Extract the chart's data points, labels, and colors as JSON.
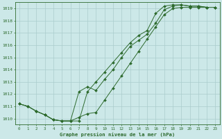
{
  "title": "Graphe pression niveau de la mer (hPa)",
  "bg_color": "#cce8e8",
  "grid_color": "#aacccc",
  "line_color": "#2d6a2d",
  "xlim": [
    -0.5,
    23.5
  ],
  "ylim": [
    1009.5,
    1019.5
  ],
  "yticks": [
    1010,
    1011,
    1012,
    1013,
    1014,
    1015,
    1016,
    1017,
    1018,
    1019
  ],
  "xticks": [
    0,
    1,
    2,
    3,
    4,
    5,
    6,
    7,
    8,
    9,
    10,
    11,
    12,
    13,
    14,
    15,
    16,
    17,
    18,
    19,
    20,
    21,
    22,
    23
  ],
  "series1_x": [
    0,
    1,
    2,
    3,
    4,
    5,
    6,
    7,
    8,
    9,
    10,
    11,
    12,
    13,
    14,
    15,
    16,
    17,
    18,
    19,
    20,
    21,
    22,
    23
  ],
  "series1_y": [
    1011.2,
    1011.0,
    1010.6,
    1010.3,
    1009.9,
    1009.8,
    1009.8,
    1010.1,
    1010.4,
    1010.5,
    1011.5,
    1012.5,
    1013.5,
    1014.5,
    1015.5,
    1016.5,
    1017.5,
    1018.5,
    1019.0,
    1019.1,
    1019.1,
    1019.1,
    1019.1,
    1019.1
  ],
  "series2_x": [
    0,
    1,
    2,
    3,
    4,
    5,
    6,
    7,
    8,
    9,
    10,
    11,
    12,
    13,
    14,
    15,
    16,
    17,
    18,
    19,
    20,
    21,
    22,
    23
  ],
  "series2_y": [
    1011.2,
    1011.0,
    1010.6,
    1010.3,
    1009.9,
    1009.8,
    1009.8,
    1012.2,
    1012.6,
    1012.3,
    1013.2,
    1014.0,
    1015.0,
    1015.9,
    1016.4,
    1016.9,
    1017.8,
    1018.9,
    1019.2,
    1019.3,
    1019.2,
    1019.2,
    1019.1,
    1019.1
  ],
  "series3_x": [
    0,
    1,
    2,
    3,
    4,
    5,
    6,
    7,
    8,
    9,
    10,
    11,
    12,
    13,
    14,
    15,
    16,
    17,
    18,
    19,
    20,
    21,
    22,
    23
  ],
  "series3_y": [
    1011.2,
    1011.0,
    1010.6,
    1010.3,
    1009.9,
    1009.8,
    1009.8,
    1009.8,
    1012.2,
    1013.0,
    1013.8,
    1014.6,
    1015.4,
    1016.2,
    1016.8,
    1017.2,
    1018.6,
    1019.2,
    1019.3,
    1019.3,
    1019.2,
    1019.2,
    1019.1,
    1019.1
  ]
}
